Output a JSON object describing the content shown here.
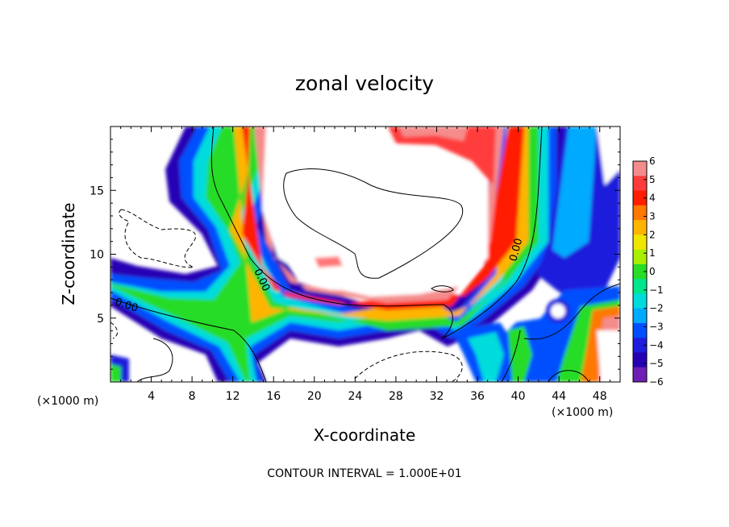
{
  "chart_data": {
    "type": "heatmap",
    "title": "zonal velocity",
    "xlabel": "X-coordinate",
    "ylabel": "Z-coordinate",
    "x_units": "(×1000 m)",
    "xlim": [
      0,
      50
    ],
    "ylim": [
      0,
      20
    ],
    "x_ticks": [
      "4",
      "8",
      "12",
      "16",
      "20",
      "24",
      "28",
      "32",
      "36",
      "40",
      "44",
      "48"
    ],
    "y_ticks": [
      "5",
      "10",
      "15"
    ],
    "colorbar": {
      "min": -6,
      "max": 6,
      "ticks": [
        "6",
        "5",
        "4",
        "3",
        "2",
        "1",
        "0",
        "−1",
        "−2",
        "−3",
        "−4",
        "−5",
        "−6"
      ],
      "colors": [
        "#f58c8c",
        "#ff3c3c",
        "#ff1e00",
        "#ff7800",
        "#ffb400",
        "#f0e600",
        "#aaee00",
        "#28dc28",
        "#00e68c",
        "#00dcdc",
        "#00aaff",
        "#0050ff",
        "#1e1edc",
        "#2800b4",
        "#6e1eb4"
      ]
    },
    "contour_labels": [
      "0.00",
      "0.00",
      "0.00"
    ],
    "footer": "CONTOUR INTERVAL = 1.000E+01"
  }
}
